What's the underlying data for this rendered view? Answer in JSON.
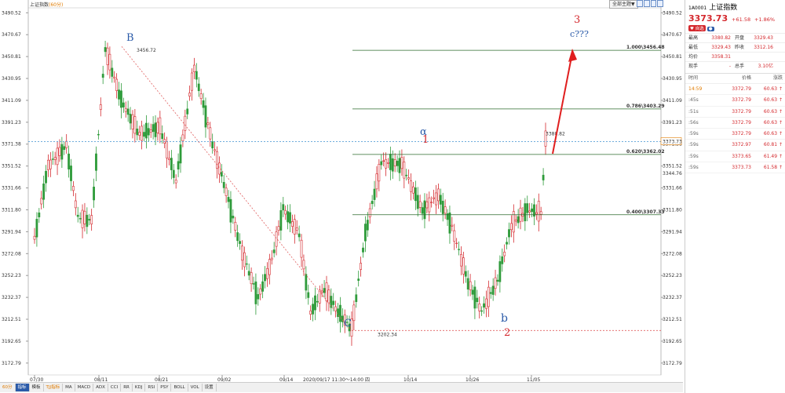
{
  "header": {
    "index_label": "上证指数",
    "period_label": "(60分)"
  },
  "toolbar": {
    "theme_button": "全部主题▼"
  },
  "bottom_tabs": [
    "指标",
    "模板",
    "TJJ指标",
    "MA",
    "MACD",
    "ADX",
    "CCI",
    "RR",
    "KDJ",
    "RSI",
    "PSY",
    "BOLL",
    "VOL",
    "设置"
  ],
  "period_tab": "60分",
  "crosshair_time": "2020/09/17 11:30～14:00 四",
  "quote": {
    "code": "1A0001",
    "name": "上证指数",
    "price": "3373.73",
    "change": "+61.58",
    "pct": "+1.86%",
    "tag": "♥ 自选",
    "stats": [
      {
        "k1": "最高",
        "v1": "3380.82",
        "k2": "开盘",
        "v2": "3329.43"
      },
      {
        "k1": "最低",
        "v1": "3329.43",
        "k2": "昨收",
        "v2": "3312.16"
      },
      {
        "k1": "均价",
        "v1": "3358.31",
        "k2": "",
        "v2": ""
      },
      {
        "k1": "现手",
        "v1": "-",
        "k2": "总手",
        "v2": "3.10亿"
      }
    ],
    "tick_header": [
      "时间",
      "价格",
      "涨跌"
    ],
    "ticks": [
      {
        "t": "14:59",
        "p": "3372.79",
        "c": "60.63"
      },
      {
        "t": ":45s",
        "p": "3372.79",
        "c": "60.63"
      },
      {
        "t": ":51s",
        "p": "3372.79",
        "c": "60.63"
      },
      {
        "t": ":56s",
        "p": "3372.79",
        "c": "60.63"
      },
      {
        "t": ":59s",
        "p": "3372.79",
        "c": "60.63"
      },
      {
        "t": ":59s",
        "p": "3372.97",
        "c": "60.81"
      },
      {
        "t": ":59s",
        "p": "3373.65",
        "c": "61.49"
      },
      {
        "t": ":59s",
        "p": "3373.73",
        "c": "61.58"
      }
    ]
  },
  "chart_data": {
    "type": "candlestick",
    "ylim": [
      3162.0,
      3495.0
    ],
    "y_ticks": [
      3490.52,
      3470.67,
      3450.81,
      3430.95,
      3411.09,
      3391.23,
      3371.38,
      3351.52,
      3331.66,
      3311.8,
      3291.94,
      3272.08,
      3252.23,
      3232.37,
      3212.51,
      3192.65,
      3172.79
    ],
    "x_ticks": [
      "07/30",
      "08/11",
      "08/21",
      "09/02",
      "09/14",
      "10/14",
      "10/26",
      "11/05"
    ],
    "current_price": 3373.73,
    "fib_levels": [
      {
        "label": "1.000\\3456.48",
        "value": 3456.48
      },
      {
        "label": "0.786\\3403.29",
        "value": 3403.29
      },
      {
        "label": "0.620\\3362.02",
        "value": 3362.02
      },
      {
        "label": "0.400\\3307.33",
        "value": 3307.33
      }
    ],
    "fib_extra_label": "3344.76",
    "low_line": 3202.34,
    "point_labels": [
      {
        "text": "3456.72",
        "value": 3456.72
      },
      {
        "text": "3202.34",
        "value": 3202.34
      },
      {
        "text": "3380.82",
        "value": 3380.82
      }
    ],
    "wave_labels": [
      {
        "text": "B",
        "color": "#2a5aa8"
      },
      {
        "text": "C",
        "color": "#2a5aa8"
      },
      {
        "text": "α",
        "color": "#2a5aa8"
      },
      {
        "text": "b",
        "color": "#2a5aa8"
      },
      {
        "text": "c???",
        "color": "#2a5aa8"
      },
      {
        "text": "1",
        "color": "#d4282d"
      },
      {
        "text": "2",
        "color": "#d4282d"
      },
      {
        "text": "3",
        "color": "#d4282d"
      }
    ],
    "up_color": "#d4282d",
    "down_color": "#2e9b3a"
  }
}
